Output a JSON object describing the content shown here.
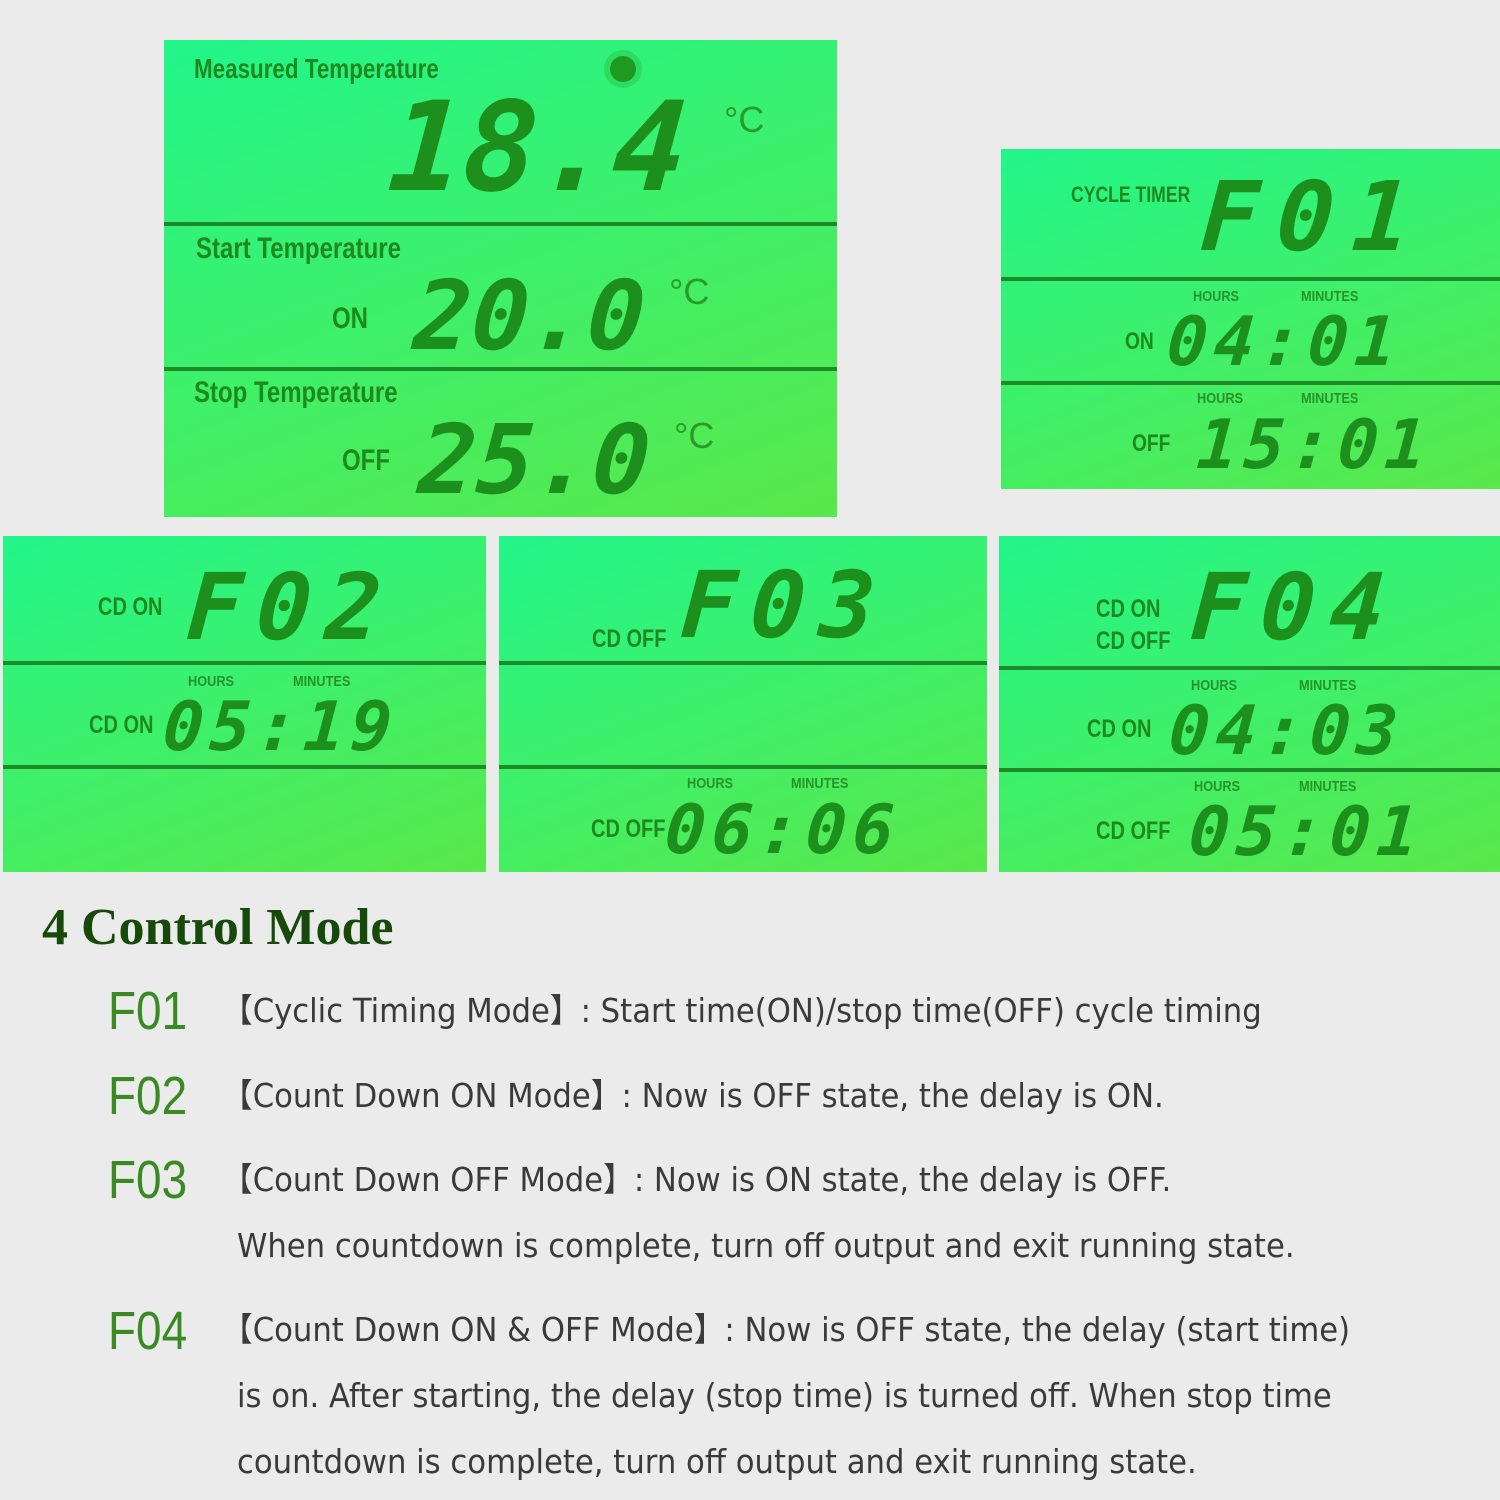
{
  "panel_temperature": {
    "measured_label": "Measured Temperature",
    "measured_value": "18.4",
    "unit": "°C",
    "start_label": "Start Temperature",
    "on_label": "ON",
    "start_value": "20.0",
    "stop_label": "Stop Temperature",
    "off_label": "OFF",
    "stop_value": "25.0",
    "icon": "sun-icon"
  },
  "panel_f01": {
    "mode_label": "CYCLE TIMER",
    "code": "F01",
    "hours": "HOURS",
    "minutes": "MINUTES",
    "on_label": "ON",
    "on_value": "04:01",
    "off_label": "OFF",
    "off_value": "15:01"
  },
  "panel_f02": {
    "mode_label": "CD ON",
    "code": "F02",
    "hours": "HOURS",
    "minutes": "MINUTES",
    "row_label": "CD ON",
    "row_value": "05:19"
  },
  "panel_f03": {
    "mode_label": "CD OFF",
    "code": "F03",
    "hours": "HOURS",
    "minutes": "MINUTES",
    "row_label": "CD OFF",
    "row_value": "06:06"
  },
  "panel_f04": {
    "mode_label_1": "CD ON",
    "mode_label_2": "CD OFF",
    "code": "F04",
    "hours": "HOURS",
    "minutes": "MINUTES",
    "on_label": "CD ON",
    "on_value": "04:03",
    "off_label": "CD OFF",
    "off_value": "05:01"
  },
  "description": {
    "title": "4 Control Mode",
    "modes": [
      {
        "code": "F01",
        "lines": [
          "【Cyclic Timing Mode】: Start time(ON)/stop time(OFF) cycle timing"
        ]
      },
      {
        "code": "F02",
        "lines": [
          "【Count Down ON Mode】: Now is OFF state, the delay is ON."
        ]
      },
      {
        "code": "F03",
        "lines": [
          "【Count Down OFF Mode】: Now is ON state, the delay is OFF.",
          "When countdown is complete, turn off output and exit running state."
        ]
      },
      {
        "code": "F04",
        "lines": [
          "【Count Down ON & OFF Mode】: Now is OFF state, the delay (start time)",
          "is on. After starting, the delay (stop time) is turned off. When stop time",
          "countdown is complete, turn off output and exit running state."
        ]
      }
    ]
  },
  "colors": {
    "lcd_background": "#3ef06a",
    "lcd_segment": "#1d8f1d",
    "title": "#174a0a",
    "code": "#3a8a24",
    "text": "#3a3a3a"
  }
}
